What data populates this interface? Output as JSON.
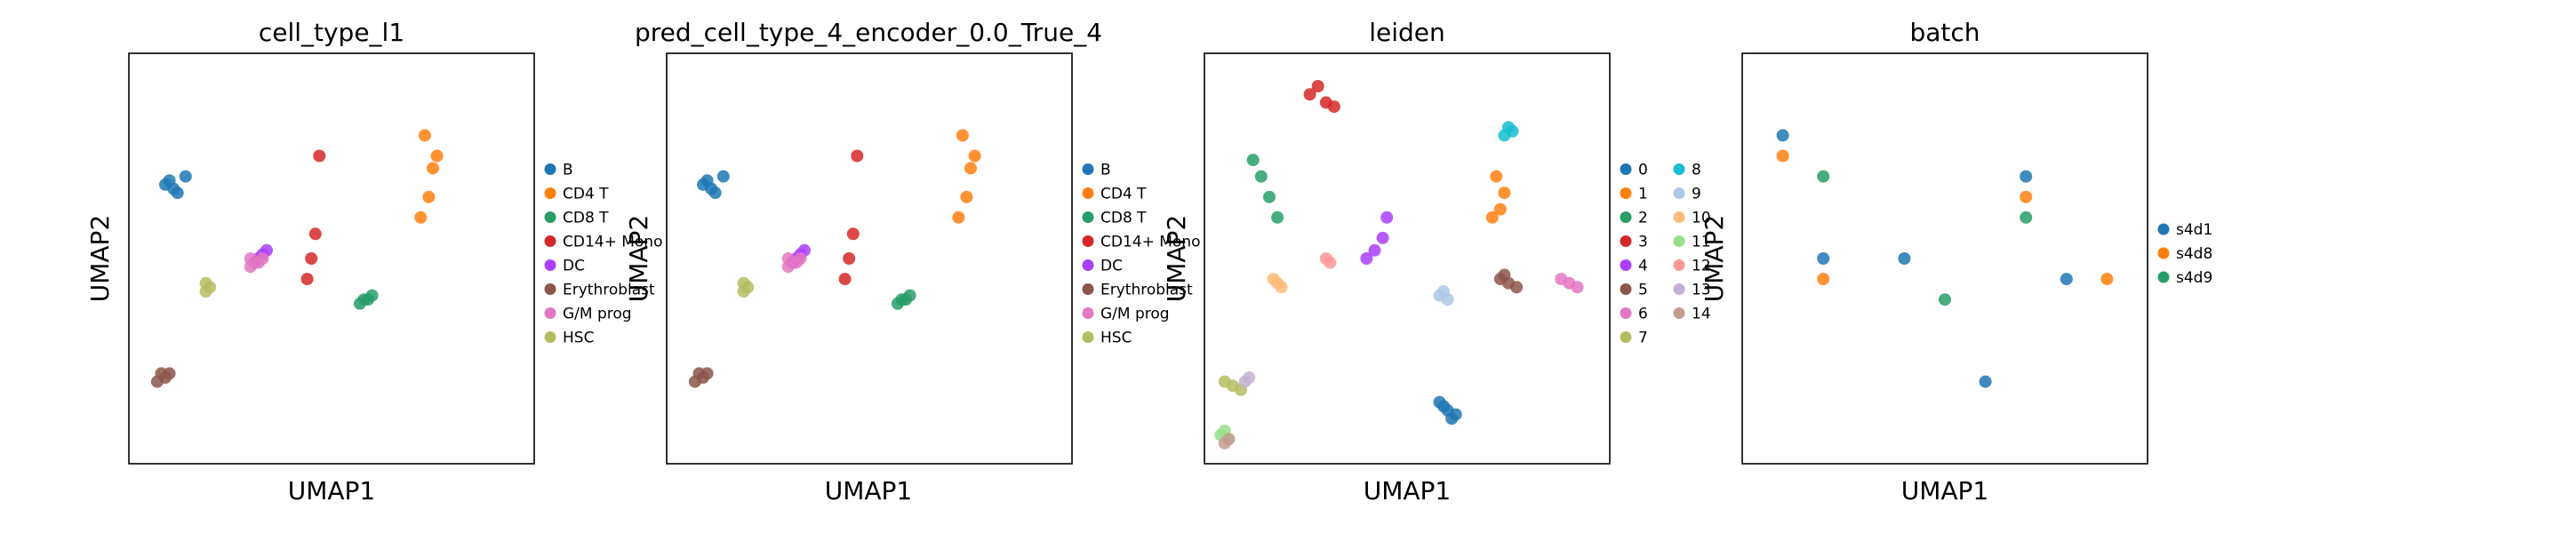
{
  "figure": {
    "panels": [
      {
        "title": "cell_type_l1",
        "xlabel": "UMAP1",
        "ylabel": "UMAP2",
        "legend": [
          {
            "label": "B",
            "color": "#1f77b4"
          },
          {
            "label": "CD4 T",
            "color": "#ff7f0e"
          },
          {
            "label": "CD8 T",
            "color": "#279e68"
          },
          {
            "label": "CD14+ Mono",
            "color": "#d62728"
          },
          {
            "label": "DC",
            "color": "#aa40fc"
          },
          {
            "label": "Erythroblast",
            "color": "#8c564b"
          },
          {
            "label": "G/M prog",
            "color": "#e377c2"
          },
          {
            "label": "HSC",
            "color": "#b5bd61"
          }
        ]
      },
      {
        "title": "pred_cell_type_4_encoder_0.0_True_4",
        "xlabel": "UMAP1",
        "ylabel": "UMAP2",
        "legend": [
          {
            "label": "B",
            "color": "#1f77b4"
          },
          {
            "label": "CD4 T",
            "color": "#ff7f0e"
          },
          {
            "label": "CD8 T",
            "color": "#279e68"
          },
          {
            "label": "CD14+ Mono",
            "color": "#d62728"
          },
          {
            "label": "DC",
            "color": "#aa40fc"
          },
          {
            "label": "Erythroblast",
            "color": "#8c564b"
          },
          {
            "label": "G/M prog",
            "color": "#e377c2"
          },
          {
            "label": "HSC",
            "color": "#b5bd61"
          }
        ]
      },
      {
        "title": "leiden",
        "xlabel": "UMAP1",
        "ylabel": "UMAP2",
        "legend": [
          {
            "label": "0",
            "color": "#1f77b4"
          },
          {
            "label": "1",
            "color": "#ff7f0e"
          },
          {
            "label": "2",
            "color": "#279e68"
          },
          {
            "label": "3",
            "color": "#d62728"
          },
          {
            "label": "4",
            "color": "#aa40fc"
          },
          {
            "label": "5",
            "color": "#8c564b"
          },
          {
            "label": "6",
            "color": "#e377c2"
          },
          {
            "label": "7",
            "color": "#b5bd61"
          },
          {
            "label": "8",
            "color": "#17becf"
          },
          {
            "label": "9",
            "color": "#aec7e8"
          },
          {
            "label": "10",
            "color": "#ffbb78"
          },
          {
            "label": "11",
            "color": "#98df8a"
          },
          {
            "label": "12",
            "color": "#ff9896"
          },
          {
            "label": "13",
            "color": "#c5b0d5"
          },
          {
            "label": "14",
            "color": "#c49c94"
          }
        ]
      },
      {
        "title": "batch",
        "xlabel": "UMAP1",
        "ylabel": "UMAP2",
        "legend": [
          {
            "label": "s4d1",
            "color": "#1f77b4"
          },
          {
            "label": "s4d8",
            "color": "#ff7f0e"
          },
          {
            "label": "s4d9",
            "color": "#279e68"
          }
        ]
      }
    ]
  },
  "chart_data": [
    {
      "type": "scatter",
      "title": "cell_type_l1",
      "xlabel": "UMAP1",
      "ylabel": "UMAP2",
      "ticks": "none",
      "legend_position": "right",
      "series": [
        {
          "name": "B",
          "color": "#1f77b4",
          "x": [
            0.1,
            0.12,
            0.14,
            0.09,
            0.11
          ],
          "y": [
            0.69,
            0.66,
            0.7,
            0.68,
            0.67
          ]
        },
        {
          "name": "CD4 T",
          "color": "#ff7f0e",
          "x": [
            0.73,
            0.75,
            0.74,
            0.72,
            0.76
          ],
          "y": [
            0.8,
            0.72,
            0.65,
            0.6,
            0.75
          ]
        },
        {
          "name": "CD8 T",
          "color": "#279e68",
          "x": [
            0.58,
            0.6,
            0.57,
            0.59
          ],
          "y": [
            0.4,
            0.41,
            0.39,
            0.4
          ]
        },
        {
          "name": "CD14+ Mono",
          "color": "#d62728",
          "x": [
            0.45,
            0.46,
            0.44,
            0.47
          ],
          "y": [
            0.5,
            0.56,
            0.45,
            0.75
          ]
        },
        {
          "name": "DC",
          "color": "#aa40fc",
          "x": [
            0.32,
            0.33,
            0.34,
            0.31
          ],
          "y": [
            0.5,
            0.51,
            0.52,
            0.49
          ]
        },
        {
          "name": "Erythroblast",
          "color": "#8c564b",
          "x": [
            0.1,
            0.08,
            0.09,
            0.07
          ],
          "y": [
            0.22,
            0.22,
            0.21,
            0.2
          ]
        },
        {
          "name": "G/M prog",
          "color": "#e377c2",
          "x": [
            0.3,
            0.32,
            0.33,
            0.3
          ],
          "y": [
            0.48,
            0.49,
            0.5,
            0.5
          ]
        },
        {
          "name": "HSC",
          "color": "#b5bd61",
          "x": [
            0.19,
            0.2,
            0.19
          ],
          "y": [
            0.42,
            0.43,
            0.44
          ]
        }
      ]
    },
    {
      "type": "scatter",
      "title": "pred_cell_type_4_encoder_0.0_True_4",
      "xlabel": "UMAP1",
      "ylabel": "UMAP2",
      "ticks": "none",
      "legend_position": "right",
      "series": [
        {
          "name": "B",
          "color": "#1f77b4",
          "x": [
            0.1,
            0.12,
            0.14,
            0.09,
            0.11
          ],
          "y": [
            0.69,
            0.66,
            0.7,
            0.68,
            0.67
          ]
        },
        {
          "name": "CD4 T",
          "color": "#ff7f0e",
          "x": [
            0.73,
            0.75,
            0.74,
            0.72,
            0.76
          ],
          "y": [
            0.8,
            0.72,
            0.65,
            0.6,
            0.75
          ]
        },
        {
          "name": "CD8 T",
          "color": "#279e68",
          "x": [
            0.58,
            0.6,
            0.57,
            0.59
          ],
          "y": [
            0.4,
            0.41,
            0.39,
            0.4
          ]
        },
        {
          "name": "CD14+ Mono",
          "color": "#d62728",
          "x": [
            0.45,
            0.46,
            0.44,
            0.47
          ],
          "y": [
            0.5,
            0.56,
            0.45,
            0.75
          ]
        },
        {
          "name": "DC",
          "color": "#aa40fc",
          "x": [
            0.32,
            0.33,
            0.34,
            0.31
          ],
          "y": [
            0.5,
            0.51,
            0.52,
            0.49
          ]
        },
        {
          "name": "Erythroblast",
          "color": "#8c564b",
          "x": [
            0.1,
            0.08,
            0.09,
            0.07
          ],
          "y": [
            0.22,
            0.22,
            0.21,
            0.2
          ]
        },
        {
          "name": "G/M prog",
          "color": "#e377c2",
          "x": [
            0.3,
            0.32,
            0.33,
            0.3
          ],
          "y": [
            0.48,
            0.49,
            0.5,
            0.5
          ]
        },
        {
          "name": "HSC",
          "color": "#b5bd61",
          "x": [
            0.19,
            0.2,
            0.19
          ],
          "y": [
            0.42,
            0.43,
            0.44
          ]
        }
      ]
    },
    {
      "type": "scatter",
      "title": "leiden",
      "xlabel": "UMAP1",
      "ylabel": "UMAP2",
      "ticks": "none",
      "legend_position": "right",
      "legend_columns": 2,
      "series": [
        {
          "name": "0",
          "color": "#1f77b4",
          "x": [
            0.58,
            0.6,
            0.62,
            0.59,
            0.61
          ],
          "y": [
            0.15,
            0.13,
            0.12,
            0.14,
            0.11
          ]
        },
        {
          "name": "1",
          "color": "#ff7f0e",
          "x": [
            0.72,
            0.74,
            0.73,
            0.71
          ],
          "y": [
            0.7,
            0.66,
            0.62,
            0.6
          ]
        },
        {
          "name": "2",
          "color": "#279e68",
          "x": [
            0.12,
            0.14,
            0.16,
            0.18
          ],
          "y": [
            0.74,
            0.7,
            0.65,
            0.6
          ]
        },
        {
          "name": "3",
          "color": "#d62728",
          "x": [
            0.26,
            0.28,
            0.3,
            0.32
          ],
          "y": [
            0.9,
            0.92,
            0.88,
            0.87
          ]
        },
        {
          "name": "4",
          "color": "#aa40fc",
          "x": [
            0.4,
            0.42,
            0.44,
            0.45
          ],
          "y": [
            0.5,
            0.52,
            0.55,
            0.6
          ]
        },
        {
          "name": "5",
          "color": "#8c564b",
          "x": [
            0.73,
            0.75,
            0.77,
            0.74
          ],
          "y": [
            0.45,
            0.44,
            0.43,
            0.46
          ]
        },
        {
          "name": "6",
          "color": "#e377c2",
          "x": [
            0.88,
            0.9,
            0.92
          ],
          "y": [
            0.45,
            0.44,
            0.43
          ]
        },
        {
          "name": "7",
          "color": "#b5bd61",
          "x": [
            0.05,
            0.07,
            0.09
          ],
          "y": [
            0.2,
            0.19,
            0.18
          ]
        },
        {
          "name": "8",
          "color": "#17becf",
          "x": [
            0.74,
            0.75,
            0.76
          ],
          "y": [
            0.8,
            0.82,
            0.81
          ]
        },
        {
          "name": "9",
          "color": "#aec7e8",
          "x": [
            0.58,
            0.6,
            0.59
          ],
          "y": [
            0.41,
            0.4,
            0.42
          ]
        },
        {
          "name": "10",
          "color": "#ffbb78",
          "x": [
            0.17,
            0.18,
            0.19
          ],
          "y": [
            0.45,
            0.44,
            0.43
          ]
        },
        {
          "name": "11",
          "color": "#98df8a",
          "x": [
            0.05,
            0.04,
            0.06
          ],
          "y": [
            0.08,
            0.07,
            0.06
          ]
        },
        {
          "name": "12",
          "color": "#ff9896",
          "x": [
            0.3,
            0.31
          ],
          "y": [
            0.5,
            0.49
          ]
        },
        {
          "name": "13",
          "color": "#c5b0d5",
          "x": [
            0.1,
            0.11
          ],
          "y": [
            0.2,
            0.21
          ]
        },
        {
          "name": "14",
          "color": "#c49c94",
          "x": [
            0.05,
            0.06
          ],
          "y": [
            0.05,
            0.06
          ]
        }
      ]
    },
    {
      "type": "scatter",
      "title": "batch",
      "xlabel": "UMAP1",
      "ylabel": "UMAP2",
      "ticks": "none",
      "legend_position": "right",
      "series": [
        {
          "name": "s4d1",
          "color": "#1f77b4",
          "x": [
            0.1,
            0.2,
            0.4,
            0.7,
            0.6,
            0.8
          ],
          "y": [
            0.8,
            0.5,
            0.5,
            0.7,
            0.2,
            0.45
          ]
        },
        {
          "name": "s4d8",
          "color": "#ff7f0e",
          "x": [
            0.1,
            0.2,
            0.7,
            0.9
          ],
          "y": [
            0.75,
            0.45,
            0.65,
            0.45
          ]
        },
        {
          "name": "s4d9",
          "color": "#279e68",
          "x": [
            0.2,
            0.5,
            0.7
          ],
          "y": [
            0.7,
            0.4,
            0.6
          ]
        }
      ]
    }
  ]
}
